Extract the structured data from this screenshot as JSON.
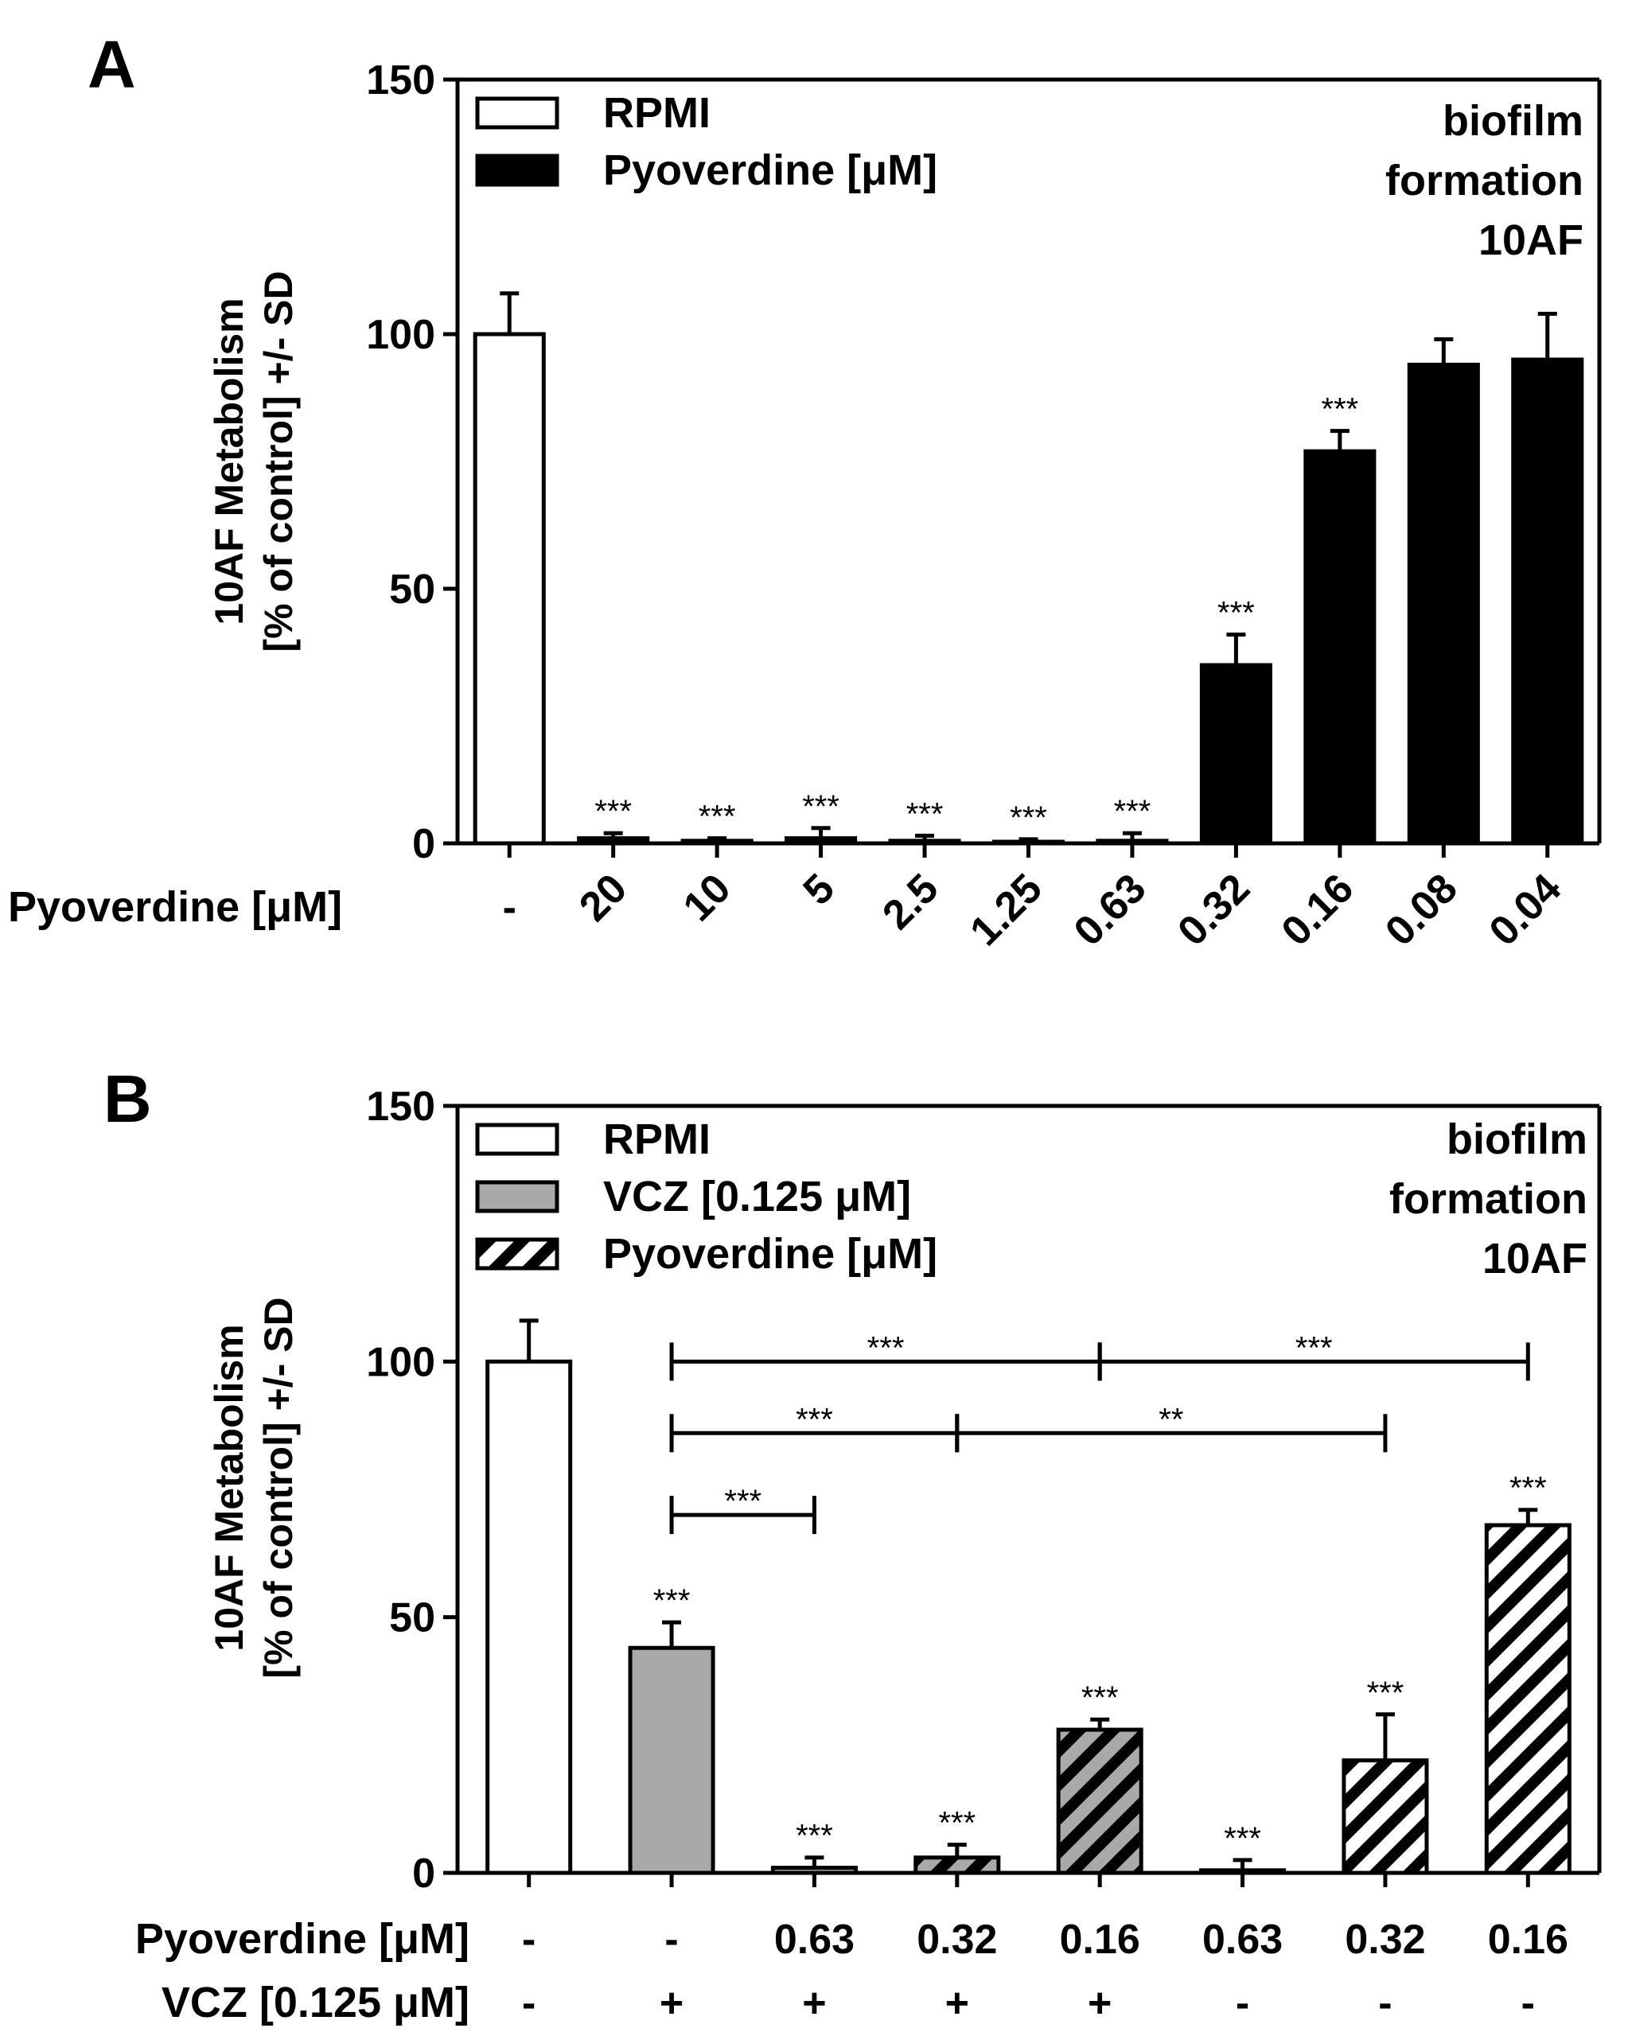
{
  "chart_data": [
    {
      "panel": "A",
      "type": "bar",
      "ylabel_line1": "10AF Metabolism",
      "ylabel_line2": "[% of control] +/- SD",
      "ylim": [
        0,
        150
      ],
      "yticks": [
        0,
        50,
        100,
        150
      ],
      "xlabel": "Pyoverdine [μM]",
      "categories": [
        "-",
        "20",
        "10",
        "5",
        "2.5",
        "1.25",
        "0.63",
        "0.32",
        "0.16",
        "0.08",
        "0.04"
      ],
      "values": [
        100,
        1,
        0.5,
        1,
        0.5,
        0.3,
        0.5,
        35,
        77,
        94,
        95
      ],
      "errors": [
        8,
        1,
        0.5,
        2,
        1,
        0.5,
        1.5,
        6,
        4,
        5,
        9
      ],
      "fills": [
        "white",
        "black",
        "black",
        "black",
        "black",
        "black",
        "black",
        "black",
        "black",
        "black",
        "black"
      ],
      "significance": [
        "",
        "***",
        "***",
        "***",
        "***",
        "***",
        "***",
        "***",
        "***",
        "",
        ""
      ],
      "legend": [
        {
          "label": "RPMI",
          "fill": "white"
        },
        {
          "label": "Pyoverdine [μM]",
          "fill": "black"
        }
      ],
      "annotation": [
        "biofilm",
        "formation",
        "10AF"
      ]
    },
    {
      "panel": "B",
      "type": "bar",
      "ylabel_line1": "10AF Metabolism",
      "ylabel_line2": "[% of control] +/- SD",
      "ylim": [
        0,
        150
      ],
      "yticks": [
        0,
        50,
        100,
        150
      ],
      "condition_rows": [
        {
          "label": "Pyoverdine [μM]",
          "values": [
            "-",
            "-",
            "0.63",
            "0.32",
            "0.16",
            "0.63",
            "0.32",
            "0.16"
          ]
        },
        {
          "label": "VCZ [0.125 μM]",
          "values": [
            "-",
            "+",
            "+",
            "+",
            "+",
            "-",
            "-",
            "-"
          ]
        }
      ],
      "values": [
        100,
        44,
        1,
        3,
        28,
        0.5,
        22,
        68
      ],
      "errors": [
        8,
        5,
        2,
        2.5,
        2,
        2,
        9,
        3
      ],
      "fills": [
        "white",
        "gray",
        "gray",
        "gray-hatch",
        "gray-hatch",
        "hatch",
        "hatch",
        "hatch"
      ],
      "significance": [
        "",
        "***",
        "***",
        "***",
        "***",
        "***",
        "***",
        "***"
      ],
      "comparisons": [
        {
          "from": 1,
          "to": 4,
          "y": 100,
          "label": "***"
        },
        {
          "from": 4,
          "to": 7,
          "y": 100,
          "label": "***"
        },
        {
          "from": 1,
          "to": 3,
          "y": 86,
          "label": "***"
        },
        {
          "from": 3,
          "to": 6,
          "y": 86,
          "label": "**"
        },
        {
          "from": 1,
          "to": 2,
          "y": 70,
          "label": "***"
        }
      ],
      "legend": [
        {
          "label": "RPMI",
          "fill": "white"
        },
        {
          "label": "VCZ [0.125 μM]",
          "fill": "gray"
        },
        {
          "label": "Pyoverdine [μM]",
          "fill": "hatch"
        }
      ],
      "annotation": [
        "biofilm",
        "formation",
        "10AF"
      ]
    }
  ]
}
